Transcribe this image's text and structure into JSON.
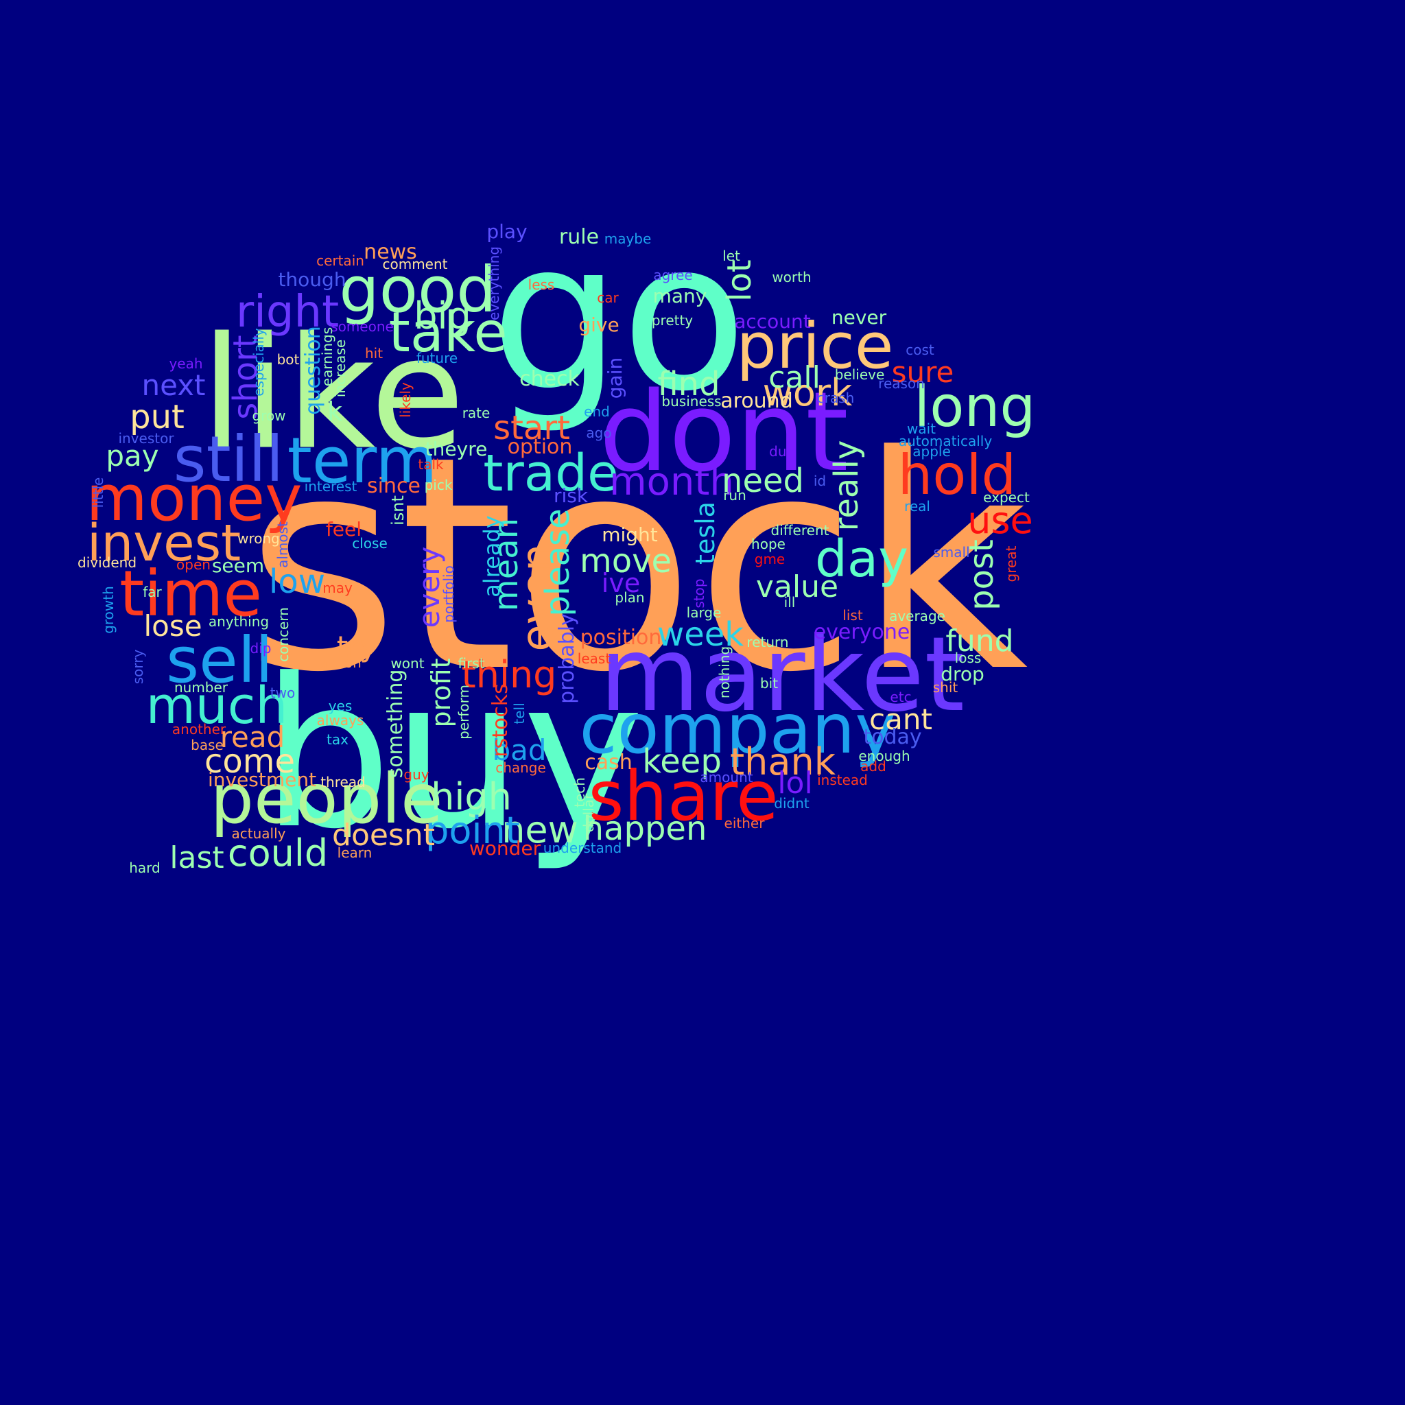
{
  "background": "#000080",
  "palette": {
    "orange": "#ffa057",
    "aqua": "#5fffc8",
    "lime": "#b4f799",
    "violet": "#7a1cff",
    "purple": "#6b38ff",
    "blue": "#4a5cf0",
    "sky": "#1ea2ee",
    "red": "#ff3b1f",
    "redhot": "#ff1010",
    "coral": "#ff6a3b",
    "sand": "#ffc879",
    "mint": "#9dffb0",
    "cyan": "#2bd4e8",
    "teal": "#45f0d0",
    "cream": "#ffe59a",
    "lilac": "#5b50ff",
    "pink": "#ff7a4f"
  },
  "words": [
    {
      "text": "stock",
      "c": "orange"
    },
    {
      "text": "go",
      "c": "aqua"
    },
    {
      "text": "buy",
      "c": "aqua"
    },
    {
      "text": "like",
      "c": "lime"
    },
    {
      "text": "dont",
      "c": "violet"
    },
    {
      "text": "market",
      "c": "purple"
    },
    {
      "text": "company",
      "c": "sky"
    },
    {
      "text": "people",
      "c": "lime"
    },
    {
      "text": "share",
      "c": "redhot"
    },
    {
      "text": "price",
      "c": "sand"
    },
    {
      "text": "good",
      "c": "mint"
    },
    {
      "text": "money",
      "c": "red"
    },
    {
      "text": "time",
      "c": "red"
    },
    {
      "text": "still",
      "c": "blue"
    },
    {
      "text": "term",
      "c": "sky"
    },
    {
      "text": "sell",
      "c": "sky"
    },
    {
      "text": "take",
      "c": "mint"
    },
    {
      "text": "hold",
      "c": "red"
    },
    {
      "text": "long",
      "c": "mint"
    },
    {
      "text": "trade",
      "c": "teal"
    },
    {
      "text": "invest",
      "c": "orange"
    },
    {
      "text": "day",
      "c": "aqua"
    },
    {
      "text": "much",
      "c": "teal"
    },
    {
      "text": "right",
      "c": "purple"
    },
    {
      "text": "even",
      "c": "orange"
    },
    {
      "text": "big",
      "c": "mint"
    },
    {
      "text": "month",
      "c": "violet"
    },
    {
      "text": "work",
      "c": "sand"
    },
    {
      "text": "thank",
      "c": "orange"
    },
    {
      "text": "high",
      "c": "mint"
    },
    {
      "text": "could",
      "c": "mint"
    },
    {
      "text": "new",
      "c": "mint"
    },
    {
      "text": "point",
      "c": "sky"
    },
    {
      "text": "thing",
      "c": "red"
    },
    {
      "text": "need",
      "c": "mint"
    },
    {
      "text": "really",
      "c": "mint"
    },
    {
      "text": "happen",
      "c": "mint"
    },
    {
      "text": "come",
      "c": "cream"
    },
    {
      "text": "keep",
      "c": "mint"
    },
    {
      "text": "start",
      "c": "coral"
    },
    {
      "text": "find",
      "c": "mint"
    },
    {
      "text": "move",
      "c": "mint"
    },
    {
      "text": "put",
      "c": "cream"
    },
    {
      "text": "lot",
      "c": "mint"
    },
    {
      "text": "call",
      "c": "mint"
    },
    {
      "text": "post",
      "c": "mint"
    },
    {
      "text": "use",
      "c": "redhot"
    },
    {
      "text": "short",
      "c": "purple"
    },
    {
      "text": "low",
      "c": "sky"
    },
    {
      "text": "mean",
      "c": "teal"
    },
    {
      "text": "please",
      "c": "teal"
    },
    {
      "text": "week",
      "c": "cyan"
    },
    {
      "text": "value",
      "c": "mint"
    },
    {
      "text": "fund",
      "c": "mint"
    },
    {
      "text": "last",
      "c": "mint"
    },
    {
      "text": "doesnt",
      "c": "sand"
    },
    {
      "text": "lol",
      "c": "violet"
    },
    {
      "text": "cant",
      "c": "cream"
    },
    {
      "text": "sure",
      "c": "red"
    },
    {
      "text": "next",
      "c": "lilac"
    },
    {
      "text": "pay",
      "c": "mint"
    },
    {
      "text": "lose",
      "c": "cream"
    },
    {
      "text": "try",
      "c": "orange"
    },
    {
      "text": "bad",
      "c": "sky"
    },
    {
      "text": "read",
      "c": "orange"
    },
    {
      "text": "every",
      "c": "purple"
    },
    {
      "text": "tesla",
      "c": "cyan"
    },
    {
      "text": "profit",
      "c": "mint"
    },
    {
      "text": "ive",
      "c": "violet"
    },
    {
      "text": "k",
      "c": "mint"
    },
    {
      "text": "question",
      "c": "sky"
    },
    {
      "text": "already",
      "c": "cyan"
    },
    {
      "text": "something",
      "c": "mint"
    },
    {
      "text": "rstocks",
      "c": "red"
    },
    {
      "text": "probably",
      "c": "lilac"
    },
    {
      "text": "gain",
      "c": "lilac"
    },
    {
      "text": "check",
      "c": "mint"
    },
    {
      "text": "rule",
      "c": "mint"
    },
    {
      "text": "play",
      "c": "lilac"
    },
    {
      "text": "news",
      "c": "orange"
    },
    {
      "text": "though",
      "c": "blue"
    },
    {
      "text": "option",
      "c": "coral"
    },
    {
      "text": "theyre",
      "c": "mint"
    },
    {
      "text": "since",
      "c": "coral"
    },
    {
      "text": "around",
      "c": "cream"
    },
    {
      "text": "everyone",
      "c": "violet"
    },
    {
      "text": "position",
      "c": "coral"
    },
    {
      "text": "cash",
      "c": "orange"
    },
    {
      "text": "today",
      "c": "blue"
    },
    {
      "text": "investment",
      "c": "orange"
    },
    {
      "text": "wonder",
      "c": "red"
    },
    {
      "text": "give",
      "c": "orange"
    },
    {
      "text": "many",
      "c": "mint"
    },
    {
      "text": "never",
      "c": "mint"
    },
    {
      "text": "account",
      "c": "violet"
    },
    {
      "text": "drop",
      "c": "mint"
    },
    {
      "text": "might",
      "c": "cream"
    },
    {
      "text": "risk",
      "c": "lilac"
    },
    {
      "text": "seem",
      "c": "mint"
    },
    {
      "text": "feel",
      "c": "red"
    },
    {
      "text": "isnt",
      "c": "mint"
    },
    {
      "text": "maybe",
      "c": "sky"
    },
    {
      "text": "comment",
      "c": "cream"
    },
    {
      "text": "certain",
      "c": "coral"
    },
    {
      "text": "less",
      "c": "coral"
    },
    {
      "text": "car",
      "c": "red"
    },
    {
      "text": "agree",
      "c": "lilac"
    },
    {
      "text": "let",
      "c": "mint"
    },
    {
      "text": "worth",
      "c": "mint"
    },
    {
      "text": "pretty",
      "c": "mint"
    },
    {
      "text": "someone",
      "c": "violet"
    },
    {
      "text": "everything",
      "c": "lilac"
    },
    {
      "text": "earnings",
      "c": "mint"
    },
    {
      "text": "increase",
      "c": "mint"
    },
    {
      "text": "especially",
      "c": "sky"
    },
    {
      "text": "hit",
      "c": "coral"
    },
    {
      "text": "bot",
      "c": "cream"
    },
    {
      "text": "future",
      "c": "sky"
    },
    {
      "text": "yeah",
      "c": "violet"
    },
    {
      "text": "cost",
      "c": "blue"
    },
    {
      "text": "believe",
      "c": "mint"
    },
    {
      "text": "reason",
      "c": "blue"
    },
    {
      "text": "crash",
      "c": "blue"
    },
    {
      "text": "business",
      "c": "mint"
    },
    {
      "text": "likely",
      "c": "red"
    },
    {
      "text": "grow",
      "c": "mint"
    },
    {
      "text": "rate",
      "c": "mint"
    },
    {
      "text": "end",
      "c": "sky"
    },
    {
      "text": "ago",
      "c": "blue"
    },
    {
      "text": "investor",
      "c": "blue"
    },
    {
      "text": "wait",
      "c": "sky"
    },
    {
      "text": "automatically",
      "c": "sky"
    },
    {
      "text": "due",
      "c": "violet"
    },
    {
      "text": "apple",
      "c": "sky"
    },
    {
      "text": "talk",
      "c": "red"
    },
    {
      "text": "interest",
      "c": "sky"
    },
    {
      "text": "pick",
      "c": "mint"
    },
    {
      "text": "id",
      "c": "blue"
    },
    {
      "text": "run",
      "c": "mint"
    },
    {
      "text": "expect",
      "c": "mint"
    },
    {
      "text": "little",
      "c": "blue"
    },
    {
      "text": "wrong",
      "c": "cream"
    },
    {
      "text": "almost",
      "c": "blue"
    },
    {
      "text": "close",
      "c": "cyan"
    },
    {
      "text": "different",
      "c": "mint"
    },
    {
      "text": "hope",
      "c": "mint"
    },
    {
      "text": "real",
      "c": "sky"
    },
    {
      "text": "small",
      "c": "blue"
    },
    {
      "text": "great",
      "c": "red"
    },
    {
      "text": "dividend",
      "c": "cream"
    },
    {
      "text": "open",
      "c": "red"
    },
    {
      "text": "portfolio",
      "c": "lilac"
    },
    {
      "text": "gme",
      "c": "redhot"
    },
    {
      "text": "may",
      "c": "red"
    },
    {
      "text": "stop",
      "c": "violet"
    },
    {
      "text": "ill",
      "c": "mint"
    },
    {
      "text": "far",
      "c": "mint"
    },
    {
      "text": "plan",
      "c": "mint"
    },
    {
      "text": "growth",
      "c": "sky"
    },
    {
      "text": "concern",
      "c": "mint"
    },
    {
      "text": "large",
      "c": "mint"
    },
    {
      "text": "list",
      "c": "coral"
    },
    {
      "text": "average",
      "c": "mint"
    },
    {
      "text": "anything",
      "c": "mint"
    },
    {
      "text": "nothing",
      "c": "mint"
    },
    {
      "text": "return",
      "c": "mint"
    },
    {
      "text": "least",
      "c": "red"
    },
    {
      "text": "sorry",
      "c": "blue"
    },
    {
      "text": "dip",
      "c": "violet"
    },
    {
      "text": "action",
      "c": "orange"
    },
    {
      "text": "wont",
      "c": "mint"
    },
    {
      "text": "first",
      "c": "mint"
    },
    {
      "text": "loss",
      "c": "mint"
    },
    {
      "text": "number",
      "c": "mint"
    },
    {
      "text": "bit",
      "c": "mint"
    },
    {
      "text": "shit",
      "c": "orange"
    },
    {
      "text": "two",
      "c": "blue"
    },
    {
      "text": "etc",
      "c": "violet"
    },
    {
      "text": "yes",
      "c": "cyan"
    },
    {
      "text": "always",
      "c": "orange"
    },
    {
      "text": "perform",
      "c": "mint"
    },
    {
      "text": "tell",
      "c": "sky"
    },
    {
      "text": "another",
      "c": "red"
    },
    {
      "text": "base",
      "c": "orange"
    },
    {
      "text": "tax",
      "c": "cyan"
    },
    {
      "text": "enough",
      "c": "mint"
    },
    {
      "text": "add",
      "c": "red"
    },
    {
      "text": "change",
      "c": "coral"
    },
    {
      "text": "guy",
      "c": "red"
    },
    {
      "text": "thread",
      "c": "cream"
    },
    {
      "text": "tech",
      "c": "mint"
    },
    {
      "text": "amount",
      "c": "lilac"
    },
    {
      "text": "instead",
      "c": "red"
    },
    {
      "text": "didnt",
      "c": "sky"
    },
    {
      "text": "dollar",
      "c": "mint"
    },
    {
      "text": "either",
      "c": "coral"
    },
    {
      "text": "actually",
      "c": "orange"
    },
    {
      "text": "learn",
      "c": "orange"
    },
    {
      "text": "understand",
      "c": "sky"
    },
    {
      "text": "hard",
      "c": "mint"
    }
  ]
}
